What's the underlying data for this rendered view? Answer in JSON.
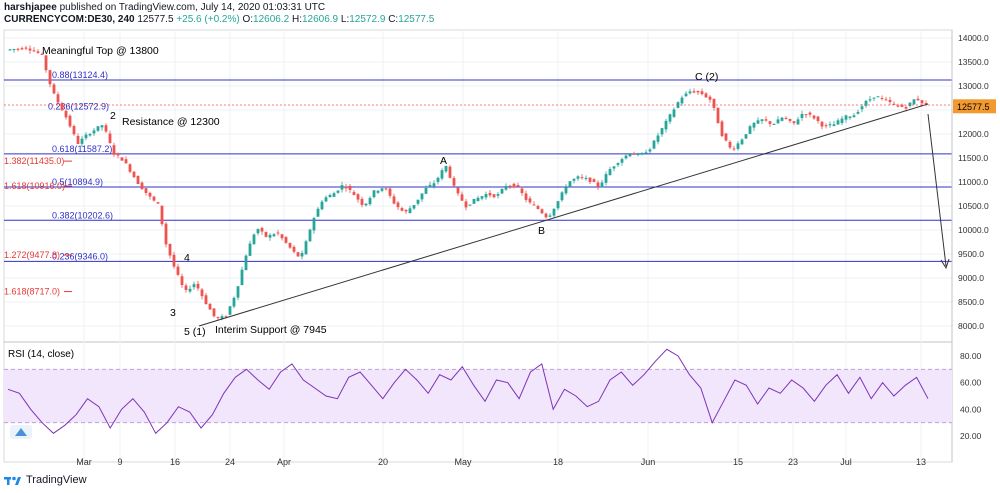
{
  "header": {
    "user": "harshjapee",
    "published": "published on TradingView.com, July 14, 2020 01:03:31 UTC",
    "symbol": "CURRENCYCOM:DE30, 240",
    "last": "12577.5",
    "change": "+25.6 (+0.2%)",
    "o_label": "O:",
    "o": "12606.2",
    "h_label": "H:",
    "h": "12606.9",
    "l_label": "L:",
    "l": "12572.9",
    "c_label": "C:",
    "c": "12577.5"
  },
  "footer": {
    "brand": "TradingView"
  },
  "colors": {
    "up": "#26a69a",
    "down": "#ef5350",
    "fib_line": "#3030c8",
    "rsi": "#7e33b8",
    "rsi_band": "#f1e6fb",
    "price_tag": "#f29a30"
  },
  "chart_data": [
    {
      "type": "candlestick",
      "title": "",
      "x_ticks": [
        "Mar",
        "9",
        "16",
        "24",
        "Apr",
        "20",
        "May",
        "18",
        "Jun",
        "15",
        "23",
        "Jul",
        "13"
      ],
      "y_ticks": [
        "14000.0",
        "13500.0",
        "13000.0",
        "12500.0",
        "12000.0",
        "11500.0",
        "11000.0",
        "10500.0",
        "10000.0",
        "9500.0",
        "9000.0",
        "8500.0",
        "8000.0"
      ],
      "ylim": [
        7700,
        14100
      ],
      "last_price": "12577.5",
      "price_path": [
        [
          0,
          13750
        ],
        [
          4,
          13800
        ],
        [
          7,
          13650
        ],
        [
          9,
          12900
        ],
        [
          12,
          12300
        ],
        [
          14,
          11800
        ],
        [
          16,
          12000
        ],
        [
          19,
          12200
        ],
        [
          21,
          11600
        ],
        [
          23,
          11450
        ],
        [
          26,
          10950
        ],
        [
          28,
          10700
        ],
        [
          30,
          10500
        ],
        [
          31,
          9800
        ],
        [
          33,
          9200
        ],
        [
          35,
          8700
        ],
        [
          37,
          8900
        ],
        [
          39,
          8500
        ],
        [
          41,
          8150
        ],
        [
          43,
          8200
        ],
        [
          45,
          8700
        ],
        [
          47,
          9500
        ],
        [
          49,
          10050
        ],
        [
          51,
          9850
        ],
        [
          53,
          9950
        ],
        [
          55,
          9700
        ],
        [
          57,
          9450
        ],
        [
          58,
          9500
        ],
        [
          60,
          10200
        ],
        [
          62,
          10650
        ],
        [
          64,
          10750
        ],
        [
          66,
          10950
        ],
        [
          68,
          10750
        ],
        [
          70,
          10500
        ],
        [
          72,
          10800
        ],
        [
          74,
          10900
        ],
        [
          76,
          10550
        ],
        [
          78,
          10350
        ],
        [
          80,
          10550
        ],
        [
          82,
          10850
        ],
        [
          84,
          11000
        ],
        [
          86,
          11350
        ],
        [
          88,
          10800
        ],
        [
          90,
          10500
        ],
        [
          92,
          10650
        ],
        [
          94,
          10750
        ],
        [
          96,
          10700
        ],
        [
          98,
          10950
        ],
        [
          100,
          10900
        ],
        [
          102,
          10600
        ],
        [
          104,
          10450
        ],
        [
          106,
          10250
        ],
        [
          108,
          10600
        ],
        [
          110,
          11000
        ],
        [
          112,
          11100
        ],
        [
          114,
          11050
        ],
        [
          116,
          10900
        ],
        [
          118,
          11250
        ],
        [
          120,
          11450
        ],
        [
          122,
          11600
        ],
        [
          124,
          11550
        ],
        [
          126,
          11700
        ],
        [
          128,
          12050
        ],
        [
          130,
          12400
        ],
        [
          132,
          12750
        ],
        [
          134,
          12900
        ],
        [
          136,
          12850
        ],
        [
          138,
          12700
        ],
        [
          140,
          12000
        ],
        [
          142,
          11650
        ],
        [
          144,
          11900
        ],
        [
          146,
          12200
        ],
        [
          148,
          12300
        ],
        [
          150,
          12200
        ],
        [
          152,
          12350
        ],
        [
          154,
          12200
        ],
        [
          156,
          12450
        ],
        [
          158,
          12350
        ],
        [
          160,
          12150
        ],
        [
          162,
          12200
        ],
        [
          164,
          12350
        ],
        [
          166,
          12400
        ],
        [
          168,
          12650
        ],
        [
          170,
          12800
        ],
        [
          172,
          12700
        ],
        [
          174,
          12600
        ],
        [
          176,
          12550
        ],
        [
          178,
          12750
        ],
        [
          180,
          12600
        ]
      ],
      "fib_lines": [
        {
          "label": "0.88(13124.4)",
          "value": 13124.4
        },
        {
          "label": "0.618(11587.2)",
          "value": 11587.2
        },
        {
          "label": "0.5(10894.9)",
          "value": 10894.9
        },
        {
          "label": "0.382(10202.6)",
          "value": 10202.6
        },
        {
          "label": "0.236(9346.0)",
          "value": 9346.0
        }
      ],
      "fib_markers": [
        {
          "label": "0.236(12572.9)",
          "value": 12572.9
        },
        {
          "label": "1.382(11435.0)",
          "value": 11435.0
        },
        {
          "label": "1.618(10916.0)",
          "value": 10916.0
        },
        {
          "label": "1.272(9477.8)",
          "value": 9477.8
        },
        {
          "label": "1.618(8717.0)",
          "value": 8717.0
        }
      ],
      "annotations": [
        "Meaningful Top @ 13800",
        "Resistance @ 12300",
        "Interim Support @ 7945",
        "A",
        "B",
        "C (2)",
        "2",
        "3",
        "4",
        "5 (1)"
      ]
    },
    {
      "type": "line",
      "title": "RSI (14, close)",
      "y_ticks": [
        "80.00",
        "60.00",
        "40.00",
        "20.00"
      ],
      "ylim": [
        10,
        86
      ],
      "band": [
        30,
        70
      ],
      "values": [
        55,
        52,
        40,
        30,
        22,
        28,
        36,
        48,
        42,
        26,
        40,
        48,
        38,
        22,
        30,
        42,
        38,
        26,
        36,
        52,
        64,
        70,
        62,
        55,
        68,
        74,
        62,
        56,
        50,
        48,
        64,
        68,
        58,
        48,
        60,
        70,
        62,
        52,
        66,
        62,
        72,
        58,
        46,
        62,
        60,
        48,
        68,
        74,
        40,
        55,
        50,
        42,
        46,
        62,
        68,
        58,
        66,
        76,
        85,
        80,
        66,
        56,
        30,
        46,
        62,
        58,
        44,
        56,
        52,
        62,
        56,
        46,
        58,
        66,
        52,
        64,
        48,
        60,
        50,
        58,
        64,
        48
      ]
    }
  ]
}
